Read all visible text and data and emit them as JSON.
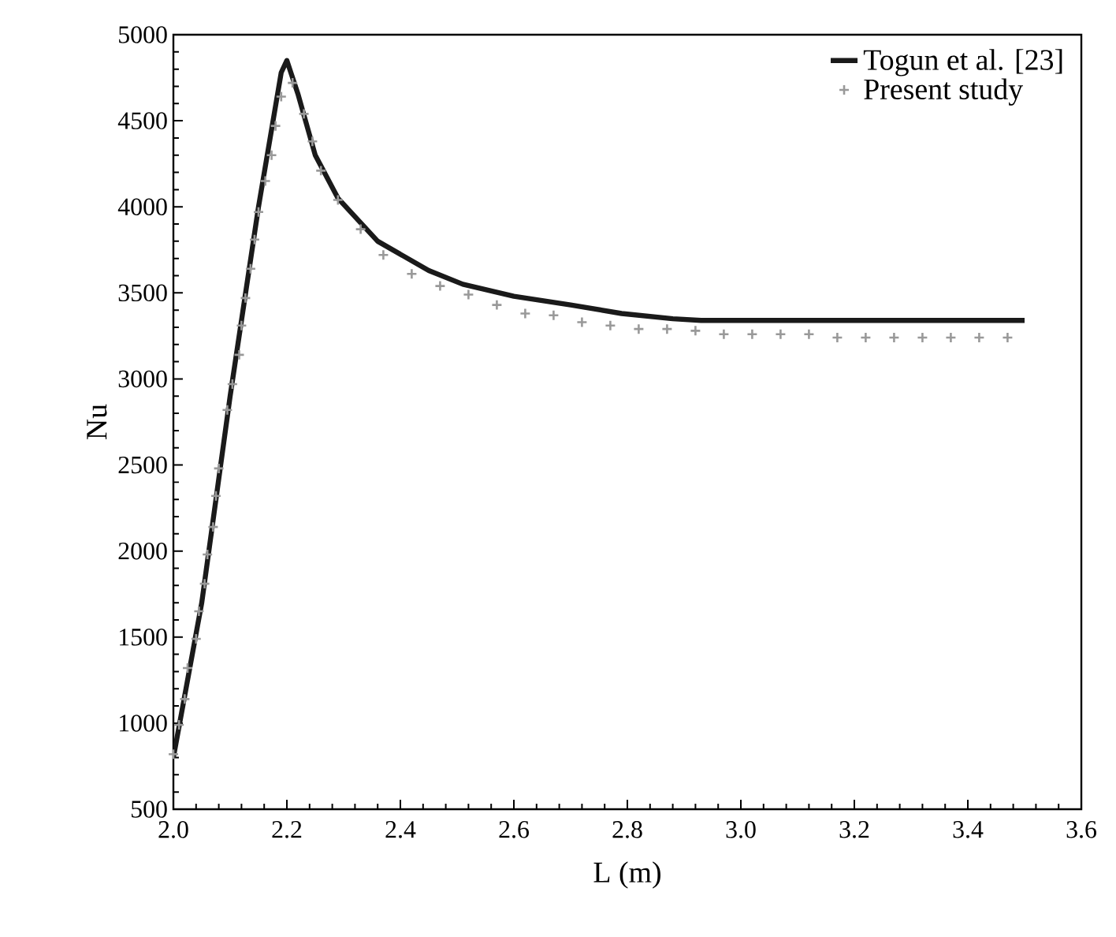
{
  "chart_data": {
    "type": "line",
    "xlabel": "L (m)",
    "ylabel": "Nu",
    "xlim": [
      2.0,
      3.6
    ],
    "ylim": [
      500,
      5000
    ],
    "xticks": [
      {
        "value": 2.0,
        "label": "2.0"
      },
      {
        "value": 2.2,
        "label": "2.2"
      },
      {
        "value": 2.4,
        "label": "2.4"
      },
      {
        "value": 2.6,
        "label": "2.6"
      },
      {
        "value": 2.8,
        "label": "2.8"
      },
      {
        "value": 3.0,
        "label": "3.0"
      },
      {
        "value": 3.2,
        "label": "3.2"
      },
      {
        "value": 3.4,
        "label": "3.4"
      },
      {
        "value": 3.6,
        "label": "3.6"
      }
    ],
    "yticks": [
      500,
      1000,
      1500,
      2000,
      2500,
      3000,
      3500,
      4000,
      4500,
      5000
    ],
    "grid": false,
    "legend": "top right",
    "series": [
      {
        "name": "Togun et al. [23]",
        "color": "#1a1a1a",
        "line_style": "solid",
        "x": [
          2.0,
          2.05,
          2.1,
          2.15,
          2.19,
          2.2,
          2.22,
          2.25,
          2.29,
          2.36,
          2.45,
          2.51,
          2.6,
          2.7,
          2.79,
          2.88,
          2.93,
          3.5
        ],
        "values": [
          800,
          1700,
          2900,
          4000,
          4780,
          4850,
          4650,
          4300,
          4050,
          3800,
          3630,
          3550,
          3480,
          3430,
          3380,
          3350,
          3340,
          3340
        ]
      },
      {
        "name": "Present study",
        "type": "scatter",
        "marker": "cross",
        "color": "#999999",
        "x": [
          2.0,
          2.01,
          2.02,
          2.025,
          2.04,
          2.045,
          2.055,
          2.06,
          2.07,
          2.075,
          2.08,
          2.095,
          2.104,
          2.116,
          2.12,
          2.127,
          2.136,
          2.143,
          2.15,
          2.162,
          2.173,
          2.18,
          2.19,
          2.21,
          2.23,
          2.245,
          2.26,
          2.29,
          2.33,
          2.37,
          2.42,
          2.47,
          2.52,
          2.57,
          2.62,
          2.67,
          2.72,
          2.77,
          2.82,
          2.87,
          2.92,
          2.97,
          3.02,
          3.07,
          3.12,
          3.17,
          3.22,
          3.27,
          3.32,
          3.37,
          3.42,
          3.47
        ],
        "values": [
          820,
          990,
          1140,
          1320,
          1490,
          1650,
          1810,
          1980,
          2140,
          2320,
          2480,
          2820,
          2970,
          3140,
          3310,
          3470,
          3640,
          3810,
          3970,
          4150,
          4300,
          4470,
          4640,
          4720,
          4540,
          4380,
          4210,
          4040,
          3870,
          3720,
          3610,
          3540,
          3490,
          3430,
          3380,
          3370,
          3330,
          3310,
          3290,
          3290,
          3280,
          3260,
          3260,
          3260,
          3260,
          3240,
          3240,
          3240,
          3240,
          3240,
          3240,
          3240
        ]
      }
    ]
  }
}
